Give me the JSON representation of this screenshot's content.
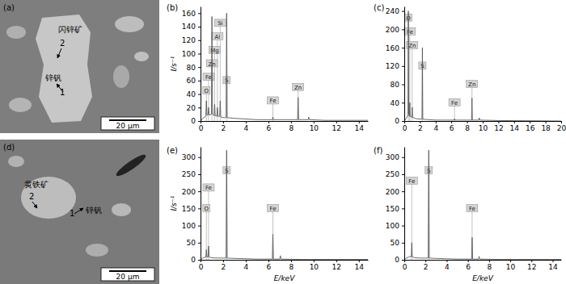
{
  "chart_data": [
    {
      "type": "line",
      "title": "(b)",
      "y_label": "I/s⁻¹",
      "color": "#5a5a5a",
      "x": [
        0,
        0.2,
        0.4,
        0.47,
        0.52,
        0.57,
        0.66,
        0.71,
        0.76,
        0.96,
        1.01,
        1.06,
        1.2,
        1.25,
        1.3,
        1.44,
        1.49,
        1.54,
        1.69,
        1.74,
        1.79,
        2.0,
        2.26,
        2.31,
        2.36,
        3.0,
        4.0,
        5.0,
        6.35,
        6.4,
        6.45,
        7.0,
        8.58,
        8.63,
        8.68,
        9.52,
        9.57,
        9.62,
        11.0,
        14.8
      ],
      "values": [
        0,
        4,
        6,
        8,
        30,
        9,
        9,
        20,
        9,
        10,
        155,
        10,
        8,
        25,
        8,
        7,
        20,
        7,
        7,
        30,
        6,
        5,
        5,
        160,
        5,
        4,
        3,
        2,
        2,
        6,
        2,
        2,
        2,
        35,
        2,
        2,
        6,
        2,
        1,
        1
      ],
      "xlim": [
        0,
        14.8
      ],
      "xticks": [
        0,
        2,
        4,
        6,
        8,
        10,
        12,
        14
      ],
      "ylim": [
        0,
        170
      ],
      "yticks": [
        0,
        20,
        40,
        60,
        80,
        100,
        120,
        140,
        160
      ],
      "annotations": [
        {
          "x": 0.52,
          "y": 45,
          "text": "O"
        },
        {
          "x": 0.71,
          "y": 65,
          "text": "Fe"
        },
        {
          "x": 1.01,
          "y": 85,
          "text": "Zn"
        },
        {
          "x": 1.25,
          "y": 105,
          "text": "Mg"
        },
        {
          "x": 1.49,
          "y": 125,
          "text": "Al"
        },
        {
          "x": 1.74,
          "y": 145,
          "text": "Si"
        },
        {
          "x": 2.31,
          "y": 60,
          "text": "S"
        },
        {
          "x": 6.4,
          "y": 30,
          "text": "Fe"
        },
        {
          "x": 8.63,
          "y": 50,
          "text": "Zn"
        }
      ]
    },
    {
      "type": "line",
      "title": "(c)",
      "color": "#5a5a5a",
      "x": [
        0,
        0.2,
        0.4,
        0.47,
        0.52,
        0.57,
        0.66,
        0.71,
        0.76,
        0.96,
        1.01,
        1.06,
        1.5,
        2.26,
        2.31,
        2.36,
        3,
        4,
        5,
        6.35,
        6.4,
        6.45,
        7,
        8.58,
        8.63,
        8.68,
        9.52,
        9.57,
        9.62,
        12,
        20
      ],
      "values": [
        0,
        5,
        10,
        15,
        240,
        15,
        10,
        40,
        10,
        8,
        30,
        8,
        5,
        4,
        160,
        4,
        3,
        2,
        2,
        2,
        5,
        2,
        2,
        2,
        50,
        2,
        2,
        7,
        2,
        1,
        0
      ],
      "xlim": [
        0,
        20
      ],
      "xticks": [
        0,
        2,
        4,
        6,
        8,
        10,
        12,
        14,
        16,
        18,
        20
      ],
      "ylim": [
        0,
        250
      ],
      "yticks": [
        0,
        40,
        80,
        120,
        160,
        200,
        240
      ],
      "annotations": [
        {
          "x": 0.52,
          "y": 225,
          "text": "O"
        },
        {
          "x": 0.71,
          "y": 195,
          "text": "Fe"
        },
        {
          "x": 1.01,
          "y": 165,
          "text": "Zn"
        },
        {
          "x": 2.31,
          "y": 120,
          "text": "S"
        },
        {
          "x": 6.4,
          "y": 40,
          "text": "Fe"
        },
        {
          "x": 8.63,
          "y": 80,
          "text": "Zn"
        }
      ]
    },
    {
      "type": "line",
      "title": "(e)",
      "x_label": "E/keV",
      "y_label": "I/s⁻¹",
      "color": "#5a5a5a",
      "x": [
        0,
        0.2,
        0.4,
        0.47,
        0.52,
        0.57,
        0.66,
        0.71,
        0.76,
        1.0,
        1.5,
        2.26,
        2.31,
        2.36,
        3,
        4,
        5,
        6.35,
        6.4,
        6.45,
        7.01,
        7.06,
        7.11,
        9,
        14.8
      ],
      "values": [
        0,
        5,
        8,
        8,
        30,
        8,
        8,
        40,
        8,
        6,
        5,
        5,
        320,
        5,
        4,
        3,
        2,
        2,
        75,
        2,
        2,
        12,
        2,
        1,
        1
      ],
      "xlim": [
        0,
        14.8
      ],
      "xticks": [
        0,
        2,
        4,
        6,
        8,
        10,
        12,
        14
      ],
      "ylim": [
        0,
        330
      ],
      "yticks": [
        0,
        50,
        100,
        150,
        200,
        250,
        300
      ],
      "annotations": [
        {
          "x": 0.52,
          "y": 150,
          "text": "O"
        },
        {
          "x": 0.71,
          "y": 210,
          "text": "Fe"
        },
        {
          "x": 2.31,
          "y": 260,
          "text": "S"
        },
        {
          "x": 6.4,
          "y": 150,
          "text": "Fe"
        }
      ]
    },
    {
      "type": "line",
      "title": "(f)",
      "x_label": "E/keV",
      "color": "#5a5a5a",
      "x": [
        0,
        0.2,
        0.4,
        0.52,
        0.66,
        0.71,
        0.76,
        1.0,
        1.5,
        2.26,
        2.31,
        2.36,
        3,
        4,
        5,
        6.35,
        6.4,
        6.45,
        7.01,
        7.06,
        7.11,
        9,
        14.8
      ],
      "values": [
        0,
        5,
        8,
        10,
        8,
        50,
        8,
        6,
        5,
        5,
        320,
        5,
        4,
        3,
        2,
        2,
        65,
        2,
        2,
        10,
        2,
        1,
        1
      ],
      "xlim": [
        0,
        14.8
      ],
      "xticks": [
        0,
        2,
        4,
        6,
        8,
        10,
        12,
        14
      ],
      "ylim": [
        0,
        330
      ],
      "yticks": [
        0,
        50,
        100,
        150,
        200,
        250,
        300
      ],
      "annotations": [
        {
          "x": 0.71,
          "y": 230,
          "text": "Fe"
        },
        {
          "x": 2.31,
          "y": 260,
          "text": "S"
        },
        {
          "x": 6.4,
          "y": 150,
          "text": "Fe"
        }
      ]
    }
  ],
  "images": [
    {
      "label": "(a)",
      "annotations": [
        "闪锌矿",
        "2",
        "锌钒",
        "1"
      ],
      "scale_bar": "20 μm"
    },
    {
      "label": "(d)",
      "annotations": [
        "黄铁矿",
        "2",
        "1",
        "锌钒"
      ],
      "scale_bar": "20 μm"
    }
  ]
}
